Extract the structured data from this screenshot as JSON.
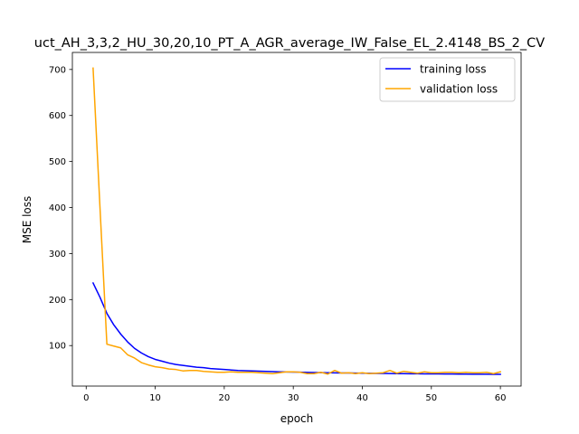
{
  "chart_data": {
    "type": "line",
    "title": "uct_AH_3,3,2_HU_30,20,10_PT_A_AGR_average_IW_False_EL_2.4148_BS_2_CV",
    "xlabel": "epoch",
    "ylabel": "MSE loss",
    "xlim": [
      -2,
      63
    ],
    "ylim": [
      12,
      737
    ],
    "xticks": [
      0,
      10,
      20,
      30,
      40,
      50,
      60
    ],
    "yticks": [
      100,
      200,
      300,
      400,
      500,
      600,
      700
    ],
    "grid": false,
    "legend_position": "top-right",
    "x": [
      1,
      2,
      3,
      4,
      5,
      6,
      7,
      8,
      9,
      10,
      11,
      12,
      13,
      14,
      15,
      16,
      17,
      18,
      19,
      20,
      21,
      22,
      23,
      24,
      25,
      26,
      27,
      28,
      29,
      30,
      31,
      32,
      33,
      34,
      35,
      36,
      37,
      38,
      39,
      40,
      41,
      42,
      43,
      44,
      45,
      46,
      47,
      48,
      49,
      50,
      51,
      52,
      53,
      54,
      55,
      56,
      57,
      58,
      59,
      60
    ],
    "series": [
      {
        "name": "training loss",
        "color": "#0000ff",
        "values": [
          236,
          205,
          170,
          145,
          125,
          108,
          94,
          84,
          76,
          70,
          66,
          62,
          59,
          57,
          55,
          53,
          52,
          50,
          49,
          48,
          47,
          46,
          45.5,
          45,
          44.5,
          44,
          43.5,
          43,
          42.7,
          42.4,
          42.1,
          41.8,
          41.5,
          41.2,
          41,
          40.8,
          40.6,
          40.4,
          40.2,
          40,
          39.8,
          39.6,
          39.4,
          39.2,
          39,
          38.9,
          38.8,
          38.7,
          38.6,
          38.5,
          38.4,
          38.3,
          38.2,
          38.1,
          38,
          37.9,
          37.8,
          37.7,
          37.6,
          37.5
        ]
      },
      {
        "name": "validation loss",
        "color": "#ffa500",
        "values": [
          703,
          400,
          103,
          99,
          95,
          80,
          73,
          63,
          58,
          54,
          52,
          49,
          48,
          45,
          46,
          46,
          44,
          43,
          42,
          42,
          43,
          42,
          42,
          42,
          41,
          40,
          39,
          41,
          43,
          43,
          42,
          39,
          39,
          42,
          38,
          46,
          40,
          41,
          39,
          41,
          39,
          40,
          41,
          46,
          40,
          44,
          42,
          40,
          43,
          41,
          41,
          42,
          42,
          41,
          42,
          41,
          41,
          42,
          39,
          43
        ]
      }
    ]
  }
}
